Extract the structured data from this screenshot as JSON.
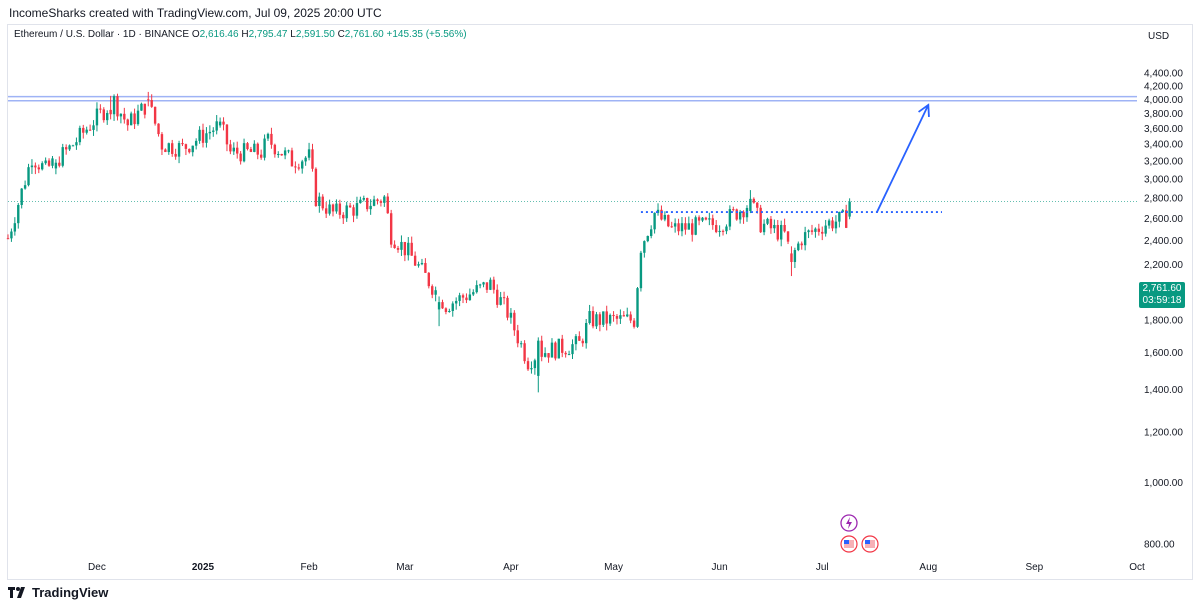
{
  "header": "IncomeSharks created with TradingView.com, Jul 09, 2025 20:00 UTC",
  "legend": {
    "symbol": "Ethereum / U.S. Dollar · 1D · BINANCE",
    "o_label": "O",
    "o": "2,616.46",
    "h_label": "H",
    "h": "2,795.47",
    "l_label": "L",
    "l": "2,591.50",
    "c_label": "C",
    "c": "2,761.60",
    "change": "+145.35 (+5.56%)"
  },
  "currency": "USD",
  "price_box": {
    "price": "2,761.60",
    "countdown": "03:59:18"
  },
  "footer": {
    "brand": "TradingView"
  },
  "colors": {
    "up": "#089981",
    "down": "#f23645",
    "resistance": "#2962ff",
    "annotation": "#2962ff"
  },
  "chart_data": {
    "type": "candlestick",
    "title": "Ethereum / U.S. Dollar · 1D · BINANCE",
    "ylabel": "USD",
    "y_axis_scale": "log",
    "ylim": [
      780,
      4650
    ],
    "xlim": [
      "2024-11-05",
      "2025-10-01"
    ],
    "y_ticks": [
      "800.00",
      "1,000.00",
      "1,200.00",
      "1,400.00",
      "1,600.00",
      "1,800.00",
      "2,000.00",
      "2,200.00",
      "2,400.00",
      "2,600.00",
      "2,800.00",
      "3,000.00",
      "3,200.00",
      "3,400.00",
      "3,600.00",
      "3,800.00",
      "4,000.00",
      "4,200.00",
      "4,400.00"
    ],
    "y_tick_values": [
      800,
      1000,
      1200,
      1400,
      1600,
      1800,
      2000,
      2200,
      2400,
      2600,
      2800,
      3000,
      3200,
      3400,
      3600,
      3800,
      4000,
      4200,
      4400
    ],
    "x_ticks": [
      {
        "label": "Dec",
        "date": "2024-12-01",
        "bold": false
      },
      {
        "label": "2025",
        "date": "2025-01-01",
        "bold": true
      },
      {
        "label": "Feb",
        "date": "2025-02-01",
        "bold": false
      },
      {
        "label": "Mar",
        "date": "2025-03-01",
        "bold": false
      },
      {
        "label": "Apr",
        "date": "2025-04-01",
        "bold": false
      },
      {
        "label": "May",
        "date": "2025-05-01",
        "bold": false
      },
      {
        "label": "Jun",
        "date": "2025-06-01",
        "bold": false
      },
      {
        "label": "Jul",
        "date": "2025-07-01",
        "bold": false
      },
      {
        "label": "Aug",
        "date": "2025-08-01",
        "bold": false
      },
      {
        "label": "Sep",
        "date": "2025-09-01",
        "bold": false
      },
      {
        "label": "Oct",
        "date": "2025-10-01",
        "bold": false
      }
    ],
    "anchors": [
      {
        "date": "2024-11-05",
        "price": 2420
      },
      {
        "date": "2024-11-12",
        "price": 3250
      },
      {
        "date": "2024-11-16",
        "price": 3100
      },
      {
        "date": "2024-11-23",
        "price": 3350
      },
      {
        "date": "2024-11-30",
        "price": 3700
      },
      {
        "date": "2024-12-06",
        "price": 3980
      },
      {
        "date": "2024-12-10",
        "price": 3650
      },
      {
        "date": "2024-12-16",
        "price": 3950
      },
      {
        "date": "2024-12-20",
        "price": 3400
      },
      {
        "date": "2024-12-26",
        "price": 3350
      },
      {
        "date": "2025-01-06",
        "price": 3650
      },
      {
        "date": "2025-01-09",
        "price": 3300
      },
      {
        "date": "2025-01-18",
        "price": 3300
      },
      {
        "date": "2025-01-20",
        "price": 3450
      },
      {
        "date": "2025-01-27",
        "price": 3200
      },
      {
        "date": "2025-02-01",
        "price": 3250
      },
      {
        "date": "2025-02-03",
        "price": 2800
      },
      {
        "date": "2025-02-08",
        "price": 2650
      },
      {
        "date": "2025-02-15",
        "price": 2700
      },
      {
        "date": "2025-02-23",
        "price": 2800
      },
      {
        "date": "2025-02-25",
        "price": 2450
      },
      {
        "date": "2025-03-02",
        "price": 2300
      },
      {
        "date": "2025-03-10",
        "price": 2000
      },
      {
        "date": "2025-03-13",
        "price": 1900
      },
      {
        "date": "2025-03-26",
        "price": 2050
      },
      {
        "date": "2025-03-31",
        "price": 1850
      },
      {
        "date": "2025-04-06",
        "price": 1550
      },
      {
        "date": "2025-04-09",
        "price": 1600
      },
      {
        "date": "2025-04-21",
        "price": 1650
      },
      {
        "date": "2025-04-24",
        "price": 1800
      },
      {
        "date": "2025-05-07",
        "price": 1800
      },
      {
        "date": "2025-05-09",
        "price": 2350
      },
      {
        "date": "2025-05-13",
        "price": 2650
      },
      {
        "date": "2025-05-18",
        "price": 2500
      },
      {
        "date": "2025-06-01",
        "price": 2550
      },
      {
        "date": "2025-06-10",
        "price": 2750
      },
      {
        "date": "2025-06-13",
        "price": 2550
      },
      {
        "date": "2025-06-20",
        "price": 2450
      },
      {
        "date": "2025-06-22",
        "price": 2250
      },
      {
        "date": "2025-06-25",
        "price": 2420
      },
      {
        "date": "2025-07-02",
        "price": 2550
      },
      {
        "date": "2025-07-08",
        "price": 2600
      },
      {
        "date": "2025-07-09",
        "price": 2761.6
      }
    ],
    "candles": [
      {
        "date": "2024-11-19",
        "o": 3115,
        "h": 3220,
        "l": 3050,
        "c": 3180
      },
      {
        "date": "2024-12-05",
        "o": 3850,
        "h": 4050,
        "l": 3720,
        "c": 3790
      },
      {
        "date": "2024-12-16",
        "o": 4000,
        "h": 4109,
        "l": 3900,
        "c": 3990
      },
      {
        "date": "2025-01-06",
        "o": 3640,
        "h": 3745,
        "l": 3610,
        "c": 3690
      },
      {
        "date": "2025-03-11",
        "o": 1870,
        "h": 1960,
        "l": 1760,
        "c": 1920
      },
      {
        "date": "2025-04-09",
        "o": 1470,
        "h": 1690,
        "l": 1385,
        "c": 1670
      },
      {
        "date": "2025-06-10",
        "o": 2670,
        "h": 2880,
        "l": 2650,
        "c": 2790
      },
      {
        "date": "2025-06-22",
        "o": 2290,
        "h": 2350,
        "l": 2110,
        "c": 2220
      },
      {
        "date": "2025-07-09",
        "o": 2616.46,
        "h": 2795.47,
        "l": 2591.5,
        "c": 2761.6
      }
    ],
    "annotations": {
      "resistance_zone": [
        3980,
        4040
      ],
      "neckline": {
        "price": 2660,
        "from": "2025-05-09",
        "to": "2025-08-05"
      },
      "arrow": {
        "from": {
          "date": "2025-07-17",
          "price": 2660
        },
        "to": {
          "date": "2025-08-01",
          "price": 3920
        }
      },
      "last_price_line": 2761.6
    }
  }
}
